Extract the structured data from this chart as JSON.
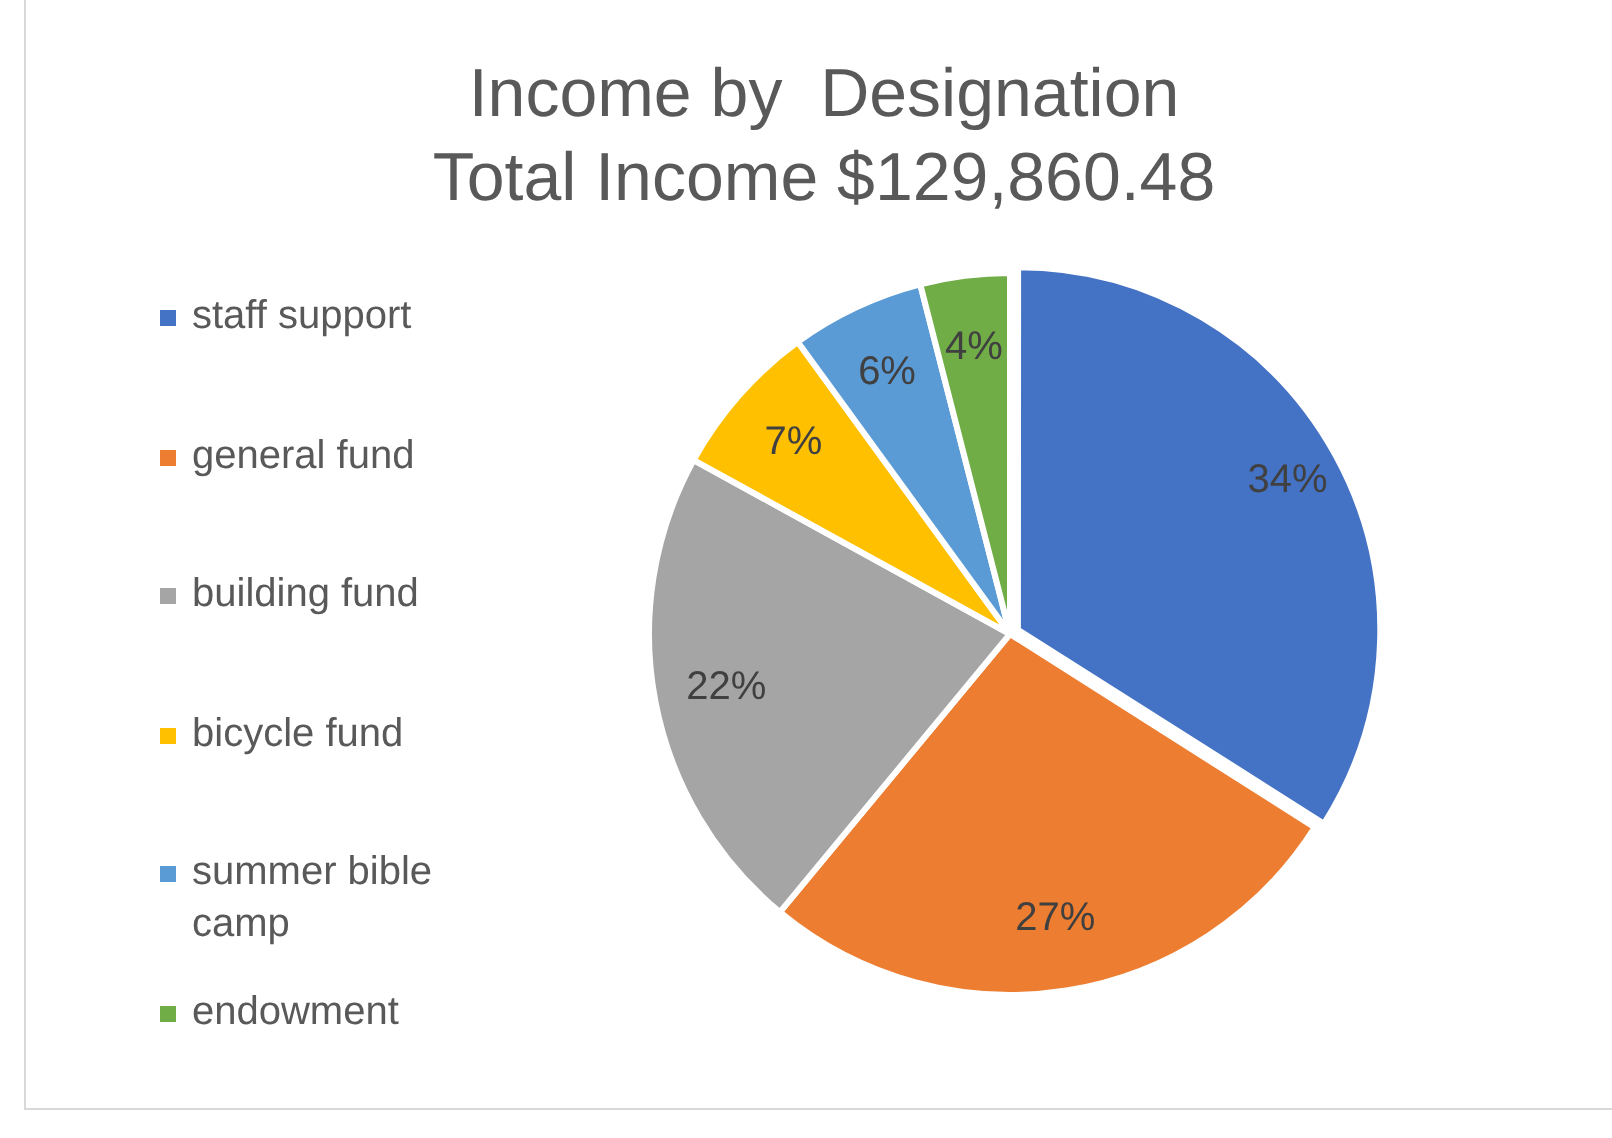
{
  "chart_data": {
    "type": "pie",
    "title": "Income by  Designation",
    "subtitle": "Total Income $129,860.48",
    "categories": [
      "staff support",
      "general fund",
      "building fund",
      "bicycle fund",
      "summer bible camp",
      "endowment"
    ],
    "values": [
      34,
      27,
      22,
      7,
      6,
      4
    ],
    "value_labels": [
      "34%",
      "27%",
      "22%",
      "7%",
      "6%",
      "4%"
    ],
    "colors": [
      "#4472c4",
      "#ed7d31",
      "#a5a5a5",
      "#ffc000",
      "#5b9bd5",
      "#70ad47"
    ],
    "legend": "left"
  }
}
